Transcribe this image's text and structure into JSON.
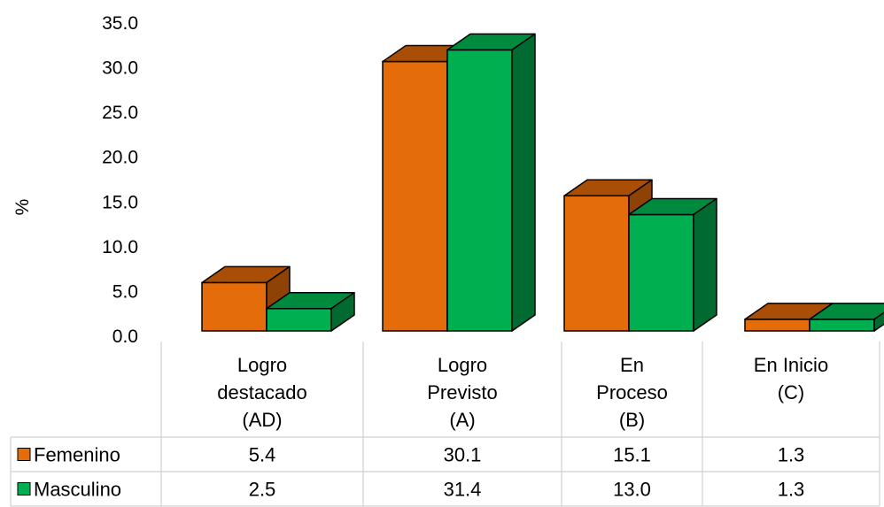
{
  "chart_data": {
    "type": "bar",
    "style": "3d-clustered-column-with-data-table",
    "ylabel": "%",
    "ylim": [
      0,
      35
    ],
    "yticks": [
      "0.0",
      "5.0",
      "10.0",
      "15.0",
      "20.0",
      "25.0",
      "30.0",
      "35.0"
    ],
    "grid": false,
    "legend": "data-table",
    "categories": [
      [
        "Logro",
        "destacado",
        "(AD)"
      ],
      [
        "Logro",
        "Previsto",
        "(A)"
      ],
      [
        "En",
        "Proceso",
        "(B)"
      ],
      [
        "En Inicio",
        "(C)"
      ]
    ],
    "series": [
      {
        "name": "Femenino",
        "values": [
          5.4,
          30.1,
          15.1,
          1.3
        ],
        "labels": [
          "5.4",
          "30.1",
          "15.1",
          "1.3"
        ],
        "color": "#E46C0A",
        "top_color": "#A84E07",
        "side_color": "#8F4206"
      },
      {
        "name": "Masculino",
        "values": [
          2.5,
          31.4,
          13.0,
          1.3
        ],
        "labels": [
          "2.5",
          "31.4",
          "13.0",
          "1.3"
        ],
        "color": "#00B050",
        "top_color": "#008A3E",
        "side_color": "#006A30"
      }
    ]
  }
}
